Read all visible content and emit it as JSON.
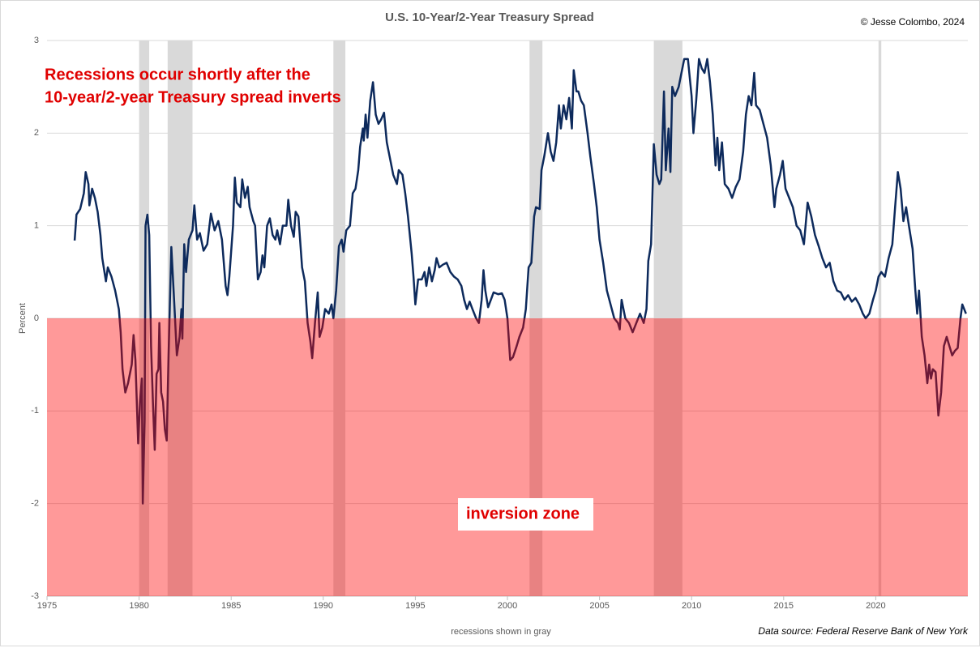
{
  "chart_data": {
    "type": "line",
    "title": "U.S. 10-Year/2-Year Treasury Spread",
    "credit": "© Jesse Colombo, 2024",
    "y_label": "Percent",
    "x_note": "recessions shown in gray",
    "source": "Data source: Federal Reserve Bank of New York",
    "annotations": [
      "Recessions occur shortly after the",
      "10-year/2-year Treasury spread inverts"
    ],
    "zone_label": "inversion zone",
    "color": "#0d2a5c",
    "zone_color": "#ff0000",
    "recession_color": "#d9d9d9",
    "grid": true,
    "xlim": [
      1975,
      2025
    ],
    "xticks": [
      1975,
      1980,
      1985,
      1990,
      1995,
      2000,
      2005,
      2010,
      2015,
      2020
    ],
    "ylim": [
      -3,
      3
    ],
    "yticks": [
      -3,
      -2,
      -1,
      0,
      1,
      2,
      3
    ],
    "recessions": [
      [
        1980.0,
        1980.55
      ],
      [
        1981.55,
        1982.9
      ],
      [
        1990.55,
        1991.2
      ],
      [
        2001.2,
        2001.9
      ],
      [
        2007.95,
        2009.5
      ],
      [
        2020.15,
        2020.3
      ]
    ],
    "x": [
      1976.5,
      1976.6,
      1976.8,
      1977.0,
      1977.1,
      1977.25,
      1977.3,
      1977.45,
      1977.6,
      1977.75,
      1977.9,
      1978.0,
      1978.2,
      1978.3,
      1978.5,
      1978.7,
      1978.9,
      1979.0,
      1979.1,
      1979.25,
      1979.4,
      1979.6,
      1979.7,
      1979.8,
      1979.95,
      1980.05,
      1980.15,
      1980.2,
      1980.3,
      1980.35,
      1980.45,
      1980.55,
      1980.65,
      1980.75,
      1980.85,
      1980.95,
      1981.05,
      1981.1,
      1981.2,
      1981.3,
      1981.4,
      1981.5,
      1981.6,
      1981.75,
      1981.9,
      1982.05,
      1982.2,
      1982.3,
      1982.35,
      1982.45,
      1982.55,
      1982.7,
      1982.9,
      1983.0,
      1983.15,
      1983.3,
      1983.5,
      1983.7,
      1983.9,
      1984.1,
      1984.3,
      1984.5,
      1984.7,
      1984.8,
      1984.9,
      1985.1,
      1985.2,
      1985.3,
      1985.5,
      1985.6,
      1985.75,
      1985.9,
      1986.0,
      1986.2,
      1986.3,
      1986.45,
      1986.6,
      1986.7,
      1986.8,
      1986.95,
      1987.1,
      1987.25,
      1987.4,
      1987.5,
      1987.65,
      1987.8,
      1988.0,
      1988.1,
      1988.25,
      1988.4,
      1988.5,
      1988.65,
      1988.85,
      1989.0,
      1989.15,
      1989.3,
      1989.4,
      1989.55,
      1989.7,
      1989.8,
      1989.95,
      1990.1,
      1990.3,
      1990.45,
      1990.55,
      1990.7,
      1990.85,
      1991.0,
      1991.1,
      1991.25,
      1991.45,
      1991.6,
      1991.75,
      1991.9,
      1992.0,
      1992.15,
      1992.2,
      1992.3,
      1992.4,
      1992.55,
      1992.7,
      1992.85,
      1993.0,
      1993.15,
      1993.3,
      1993.45,
      1993.6,
      1993.8,
      1994.0,
      1994.1,
      1994.3,
      1994.45,
      1994.6,
      1994.8,
      1994.9,
      1995.0,
      1995.15,
      1995.35,
      1995.5,
      1995.6,
      1995.75,
      1995.9,
      1996.05,
      1996.15,
      1996.3,
      1996.5,
      1996.7,
      1996.9,
      1997.1,
      1997.3,
      1997.5,
      1997.65,
      1997.8,
      1997.95,
      1998.1,
      1998.3,
      1998.45,
      1998.6,
      1998.7,
      1998.8,
      1998.95,
      1999.1,
      1999.25,
      1999.5,
      1999.7,
      1999.85,
      2000.0,
      2000.15,
      2000.3,
      2000.5,
      2000.65,
      2000.85,
      2001.0,
      2001.15,
      2001.3,
      2001.45,
      2001.55,
      2001.75,
      2001.85,
      2002.0,
      2002.2,
      2002.35,
      2002.5,
      2002.65,
      2002.8,
      2002.9,
      2003.05,
      2003.2,
      2003.35,
      2003.5,
      2003.6,
      2003.75,
      2003.85,
      2004.0,
      2004.15,
      2004.35,
      2004.5,
      2004.7,
      2004.85,
      2005.0,
      2005.2,
      2005.4,
      2005.6,
      2005.8,
      2006.0,
      2006.1,
      2006.2,
      2006.4,
      2006.6,
      2006.8,
      2007.0,
      2007.2,
      2007.4,
      2007.55,
      2007.65,
      2007.8,
      2007.95,
      2008.1,
      2008.25,
      2008.35,
      2008.5,
      2008.6,
      2008.75,
      2008.85,
      2008.95,
      2009.1,
      2009.3,
      2009.5,
      2009.6,
      2009.8,
      2010.0,
      2010.1,
      2010.25,
      2010.4,
      2010.55,
      2010.7,
      2010.85,
      2011.0,
      2011.15,
      2011.3,
      2011.4,
      2011.5,
      2011.65,
      2011.8,
      2012.0,
      2012.2,
      2012.4,
      2012.6,
      2012.8,
      2012.95,
      2013.1,
      2013.25,
      2013.4,
      2013.5,
      2013.7,
      2013.9,
      2014.1,
      2014.3,
      2014.5,
      2014.6,
      2014.8,
      2014.95,
      2015.1,
      2015.3,
      2015.5,
      2015.7,
      2015.9,
      2016.1,
      2016.3,
      2016.5,
      2016.7,
      2016.9,
      2017.1,
      2017.3,
      2017.5,
      2017.7,
      2017.9,
      2018.1,
      2018.3,
      2018.5,
      2018.7,
      2018.9,
      2019.1,
      2019.3,
      2019.45,
      2019.65,
      2019.85,
      2020.0,
      2020.15,
      2020.3,
      2020.5,
      2020.7,
      2020.9,
      2021.05,
      2021.2,
      2021.35,
      2021.5,
      2021.65,
      2021.8,
      2022.0,
      2022.15,
      2022.25,
      2022.35,
      2022.5,
      2022.65,
      2022.8,
      2022.9,
      2023.0,
      2023.1,
      2023.25,
      2023.4,
      2023.55,
      2023.7,
      2023.85,
      2024.0,
      2024.15,
      2024.3,
      2024.45,
      2024.6,
      2024.7,
      2024.8,
      2024.9
    ],
    "values": [
      0.84,
      1.12,
      1.18,
      1.35,
      1.58,
      1.45,
      1.22,
      1.4,
      1.3,
      1.15,
      0.9,
      0.65,
      0.4,
      0.55,
      0.45,
      0.3,
      0.1,
      -0.15,
      -0.55,
      -0.8,
      -0.7,
      -0.5,
      -0.18,
      -0.45,
      -1.35,
      -0.9,
      -0.65,
      -2.0,
      -1.1,
      1.0,
      1.12,
      0.9,
      -0.3,
      -0.9,
      -1.42,
      -0.6,
      -0.55,
      -0.05,
      -0.8,
      -0.9,
      -1.2,
      -1.32,
      -0.4,
      0.77,
      0.2,
      -0.4,
      -0.2,
      0.1,
      -0.22,
      0.8,
      0.5,
      0.85,
      0.95,
      1.22,
      0.85,
      0.92,
      0.73,
      0.8,
      1.13,
      0.95,
      1.05,
      0.85,
      0.35,
      0.25,
      0.45,
      1.0,
      1.52,
      1.25,
      1.2,
      1.5,
      1.3,
      1.42,
      1.2,
      1.05,
      1.0,
      0.42,
      0.5,
      0.68,
      0.55,
      1.0,
      1.08,
      0.9,
      0.85,
      0.95,
      0.8,
      1.0,
      1.0,
      1.28,
      1.0,
      0.88,
      1.15,
      1.1,
      0.55,
      0.4,
      -0.05,
      -0.25,
      -0.43,
      -0.05,
      0.28,
      -0.2,
      -0.1,
      0.1,
      0.05,
      0.15,
      0.0,
      0.3,
      0.78,
      0.85,
      0.72,
      0.95,
      1.0,
      1.35,
      1.4,
      1.6,
      1.85,
      2.05,
      1.92,
      2.2,
      1.95,
      2.35,
      2.55,
      2.2,
      2.1,
      2.15,
      2.22,
      1.9,
      1.75,
      1.55,
      1.45,
      1.6,
      1.55,
      1.35,
      1.1,
      0.7,
      0.45,
      0.15,
      0.42,
      0.42,
      0.5,
      0.35,
      0.55,
      0.4,
      0.52,
      0.65,
      0.55,
      0.58,
      0.6,
      0.5,
      0.45,
      0.42,
      0.35,
      0.2,
      0.1,
      0.18,
      0.1,
      0.0,
      -0.05,
      0.2,
      0.52,
      0.3,
      0.12,
      0.2,
      0.28,
      0.26,
      0.27,
      0.2,
      0.0,
      -0.45,
      -0.42,
      -0.3,
      -0.2,
      -0.1,
      0.1,
      0.55,
      0.6,
      1.1,
      1.2,
      1.18,
      1.6,
      1.75,
      2.0,
      1.8,
      1.7,
      1.9,
      2.3,
      2.05,
      2.3,
      2.15,
      2.38,
      2.05,
      2.68,
      2.45,
      2.45,
      2.35,
      2.3,
      2.0,
      1.75,
      1.45,
      1.2,
      0.85,
      0.6,
      0.3,
      0.15,
      0.0,
      -0.05,
      -0.12,
      0.2,
      0.0,
      -0.05,
      -0.15,
      -0.05,
      0.05,
      -0.05,
      0.1,
      0.62,
      0.8,
      1.88,
      1.55,
      1.45,
      1.5,
      2.45,
      1.6,
      2.05,
      1.58,
      2.5,
      2.4,
      2.5,
      2.7,
      2.8,
      2.8,
      2.4,
      2.0,
      2.35,
      2.8,
      2.7,
      2.65,
      2.8,
      2.55,
      2.2,
      1.65,
      1.95,
      1.6,
      1.9,
      1.45,
      1.4,
      1.3,
      1.42,
      1.5,
      1.8,
      2.2,
      2.4,
      2.3,
      2.65,
      2.3,
      2.25,
      2.1,
      1.95,
      1.65,
      1.2,
      1.4,
      1.55,
      1.7,
      1.4,
      1.3,
      1.2,
      1.0,
      0.95,
      0.8,
      1.25,
      1.1,
      0.9,
      0.78,
      0.65,
      0.55,
      0.6,
      0.4,
      0.3,
      0.28,
      0.2,
      0.25,
      0.18,
      0.22,
      0.15,
      0.05,
      0.0,
      0.05,
      0.2,
      0.3,
      0.45,
      0.5,
      0.45,
      0.65,
      0.8,
      1.2,
      1.58,
      1.4,
      1.05,
      1.2,
      1.0,
      0.75,
      0.3,
      0.05,
      0.3,
      -0.2,
      -0.4,
      -0.7,
      -0.5,
      -0.65,
      -0.55,
      -0.58,
      -1.05,
      -0.8,
      -0.3,
      -0.2,
      -0.3,
      -0.4,
      -0.35,
      -0.32,
      0.0,
      0.15,
      0.1,
      0.05
    ]
  }
}
